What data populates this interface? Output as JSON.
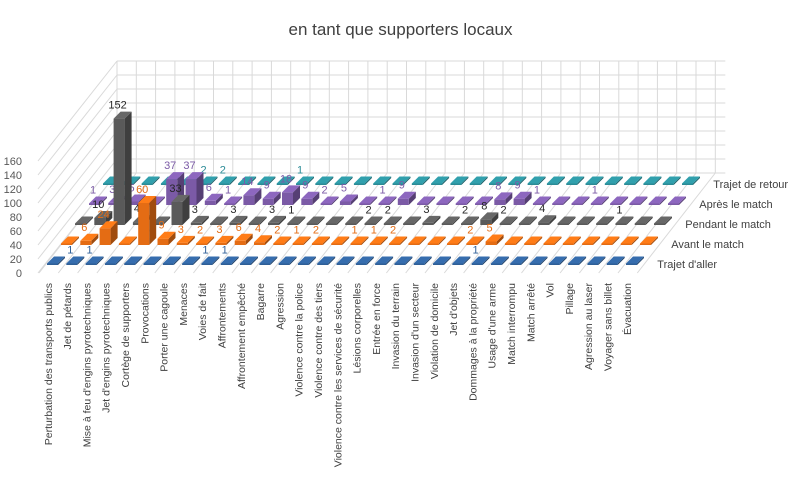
{
  "chart_data": {
    "type": "bar",
    "variant": "3d-column",
    "title": "en tant que supporters locaux",
    "zlim": [
      0,
      160
    ],
    "zticks": [
      0,
      20,
      40,
      60,
      80,
      100,
      120,
      140,
      160
    ],
    "grid": true,
    "categories": [
      "Perturbation des transports publics",
      "Jet de pétards",
      "Mise à feu d'engins pyrotechniques",
      "Jet d'engins pyrotechniques",
      "Cortège de supporters",
      "Provocations",
      "Porter une cagoule",
      "Menaces",
      "Voies de fait",
      "Affrontements",
      "Affrontement empêché",
      "Bagarre",
      "Agression",
      "Violence contre la police",
      "Violence contre des tiers",
      "Violence contre les services de sécurité",
      "Lésions corporelles",
      "Entrée en force",
      "Invasion du terrain",
      "Invasion d'un secteur",
      "Violation de domicile",
      "Jet d'objets",
      "Dommages à la propriété",
      "Usage d'une arme",
      "Match interrompu",
      "Match arrêté",
      "Vol",
      "Pillage",
      "Agression au laser",
      "Voyager sans billet",
      "Évacuation"
    ],
    "series": [
      {
        "name": "Trajet d'aller",
        "color": "#2f5f97",
        "values": [
          0,
          1,
          1,
          0,
          0,
          0,
          0,
          0,
          1,
          1,
          0,
          0,
          0,
          0,
          0,
          0,
          0,
          0,
          0,
          0,
          0,
          0,
          1,
          0,
          0,
          0,
          0,
          0,
          0,
          0,
          0
        ]
      },
      {
        "name": "Avant le match",
        "color": "#e46c14",
        "values": [
          0,
          6,
          24,
          0,
          60,
          9,
          3,
          2,
          3,
          6,
          4,
          2,
          1,
          2,
          0,
          1,
          1,
          2,
          0,
          0,
          0,
          2,
          5,
          0,
          0,
          0,
          0,
          0,
          0,
          0,
          0
        ]
      },
      {
        "name": "Pendant le match",
        "color": "#5a5a5a",
        "values": [
          0,
          10,
          152,
          4,
          0,
          33,
          3,
          0,
          3,
          0,
          3,
          1,
          0,
          0,
          0,
          2,
          2,
          0,
          3,
          0,
          2,
          8,
          2,
          0,
          4,
          0,
          0,
          0,
          1,
          0,
          0
        ]
      },
      {
        "name": "Après le match",
        "color": "#7b5aa6",
        "values": [
          1,
          3,
          5,
          0,
          37,
          37,
          6,
          1,
          14,
          9,
          18,
          9,
          2,
          5,
          0,
          1,
          9,
          0,
          0,
          0,
          0,
          8,
          9,
          1,
          0,
          0,
          1,
          0,
          0,
          0,
          0
        ]
      },
      {
        "name": "Trajet de retour",
        "color": "#2b8b96",
        "values": [
          0,
          0,
          0,
          0,
          0,
          2,
          2,
          0,
          0,
          0,
          1,
          0,
          0,
          0,
          0,
          0,
          0,
          0,
          0,
          0,
          0,
          0,
          0,
          0,
          0,
          0,
          0,
          0,
          0,
          0,
          0
        ]
      }
    ]
  }
}
